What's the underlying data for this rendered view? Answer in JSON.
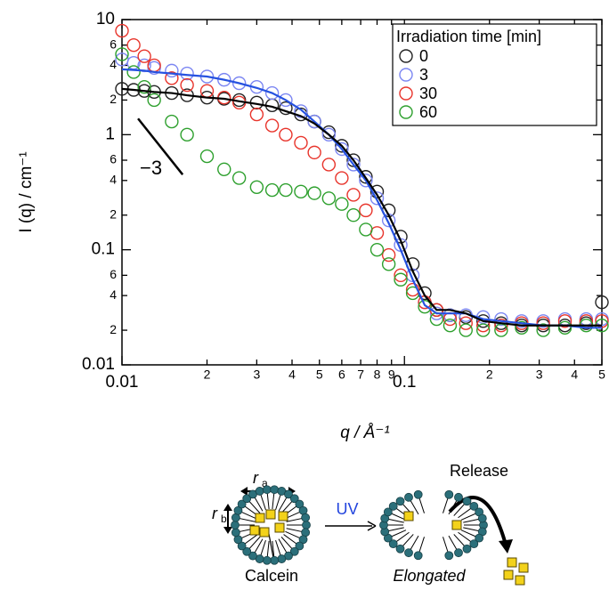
{
  "chart_data": {
    "type": "scatter",
    "xlabel": "q / Å⁻¹",
    "ylabel": "I (q) / cm⁻¹",
    "xscale": "log",
    "yscale": "log",
    "xlim": [
      0.01,
      0.5
    ],
    "ylim": [
      0.01,
      10
    ],
    "xticks": [
      0.01,
      {
        "value": 0.02,
        "label": "2"
      },
      {
        "value": 0.03,
        "label": "3"
      },
      {
        "value": 0.04,
        "label": "4"
      },
      {
        "value": 0.05,
        "label": "5"
      },
      {
        "value": 0.06,
        "label": "6"
      },
      {
        "value": 0.07,
        "label": "7"
      },
      {
        "value": 0.08,
        "label": "8"
      },
      {
        "value": 0.09,
        "label": "9"
      },
      0.1,
      {
        "value": 0.2,
        "label": "2"
      },
      {
        "value": 0.3,
        "label": "3"
      },
      {
        "value": 0.4,
        "label": "4"
      },
      {
        "value": 0.5,
        "label": "5"
      }
    ],
    "yticks": [
      0.01,
      {
        "value": 0.02,
        "label": "2"
      },
      {
        "value": 0.04,
        "label": "4"
      },
      {
        "value": 0.06,
        "label": "6"
      },
      0.1,
      {
        "value": 0.2,
        "label": "2"
      },
      {
        "value": 0.4,
        "label": "4"
      },
      {
        "value": 0.6,
        "label": "6"
      },
      1,
      2,
      4,
      6,
      10
    ],
    "legend": "upper right",
    "legend_title": "Irradiation time [min]",
    "x": [
      0.01,
      0.011,
      0.012,
      0.013,
      0.015,
      0.017,
      0.02,
      0.023,
      0.026,
      0.03,
      0.034,
      0.038,
      0.043,
      0.048,
      0.054,
      0.06,
      0.066,
      0.073,
      0.08,
      0.088,
      0.097,
      0.107,
      0.118,
      0.13,
      0.145,
      0.165,
      0.19,
      0.22,
      0.26,
      0.31,
      0.37,
      0.44,
      0.5
    ],
    "series": [
      {
        "name": "0",
        "color": "#222222",
        "values": [
          2.5,
          2.45,
          2.4,
          2.35,
          2.3,
          2.2,
          2.1,
          2.05,
          2.0,
          1.9,
          1.8,
          1.7,
          1.5,
          1.3,
          1.05,
          0.8,
          0.6,
          0.43,
          0.32,
          0.22,
          0.13,
          0.075,
          0.042,
          0.03,
          0.027,
          0.026,
          0.024,
          0.023,
          0.022,
          0.022,
          0.022,
          0.023,
          0.035
        ]
      },
      {
        "name": "3",
        "color": "#7b86f2",
        "values": [
          4.5,
          4.2,
          4.0,
          3.8,
          3.6,
          3.4,
          3.2,
          3.0,
          2.8,
          2.6,
          2.3,
          2.0,
          1.6,
          1.3,
          1.0,
          0.75,
          0.55,
          0.4,
          0.28,
          0.18,
          0.11,
          0.06,
          0.035,
          0.028,
          0.027,
          0.027,
          0.026,
          0.025,
          0.024,
          0.024,
          0.025,
          0.025,
          0.025
        ]
      },
      {
        "name": "30",
        "color": "#e8342b",
        "values": [
          8,
          6,
          4.8,
          4,
          3.1,
          2.7,
          2.4,
          2.1,
          1.9,
          1.5,
          1.2,
          1.0,
          0.85,
          0.7,
          0.55,
          0.42,
          0.3,
          0.22,
          0.14,
          0.09,
          0.06,
          0.045,
          0.035,
          0.03,
          0.025,
          0.023,
          0.022,
          0.022,
          0.023,
          0.023,
          0.024,
          0.024,
          0.024
        ]
      },
      {
        "name": "60",
        "color": "#2ea02e",
        "values": [
          5,
          3.5,
          2.6,
          2,
          1.3,
          1.0,
          0.65,
          0.5,
          0.42,
          0.35,
          0.33,
          0.33,
          0.32,
          0.31,
          0.28,
          0.25,
          0.2,
          0.15,
          0.1,
          0.075,
          0.055,
          0.042,
          0.032,
          0.025,
          0.022,
          0.02,
          0.02,
          0.02,
          0.021,
          0.02,
          0.021,
          0.022,
          0.022
        ]
      }
    ],
    "fit_lines": [
      {
        "color": "#2652e0",
        "values": [
          3.7,
          3.65,
          3.6,
          3.5,
          3.4,
          3.3,
          3.2,
          3.0,
          2.8,
          2.55,
          2.3,
          2.0,
          1.65,
          1.3,
          1.0,
          0.75,
          0.55,
          0.4,
          0.27,
          0.17,
          0.1,
          0.055,
          0.033,
          0.028,
          0.028,
          0.028,
          0.025,
          0.024,
          0.023,
          0.022,
          0.022,
          0.021,
          0.021
        ]
      },
      {
        "color": "#000000",
        "values": [
          2.5,
          2.45,
          2.4,
          2.35,
          2.3,
          2.2,
          2.1,
          2.05,
          1.95,
          1.85,
          1.75,
          1.6,
          1.45,
          1.25,
          1.0,
          0.8,
          0.6,
          0.42,
          0.3,
          0.2,
          0.12,
          0.065,
          0.04,
          0.03,
          0.03,
          0.028,
          0.024,
          0.023,
          0.022,
          0.022,
          0.022,
          0.022,
          0.022
        ]
      }
    ],
    "slope_line": {
      "x": [
        0.0114,
        0.0164
      ],
      "y": [
        1.38,
        0.45
      ],
      "label": "−3"
    }
  },
  "diagram": {
    "r_a": {
      "main": "r",
      "sub": "a"
    },
    "r_b": {
      "main": "r",
      "sub": "b"
    },
    "uv": "UV",
    "release": "Release",
    "calcein": "Calcein",
    "elongated": "Elongated"
  }
}
